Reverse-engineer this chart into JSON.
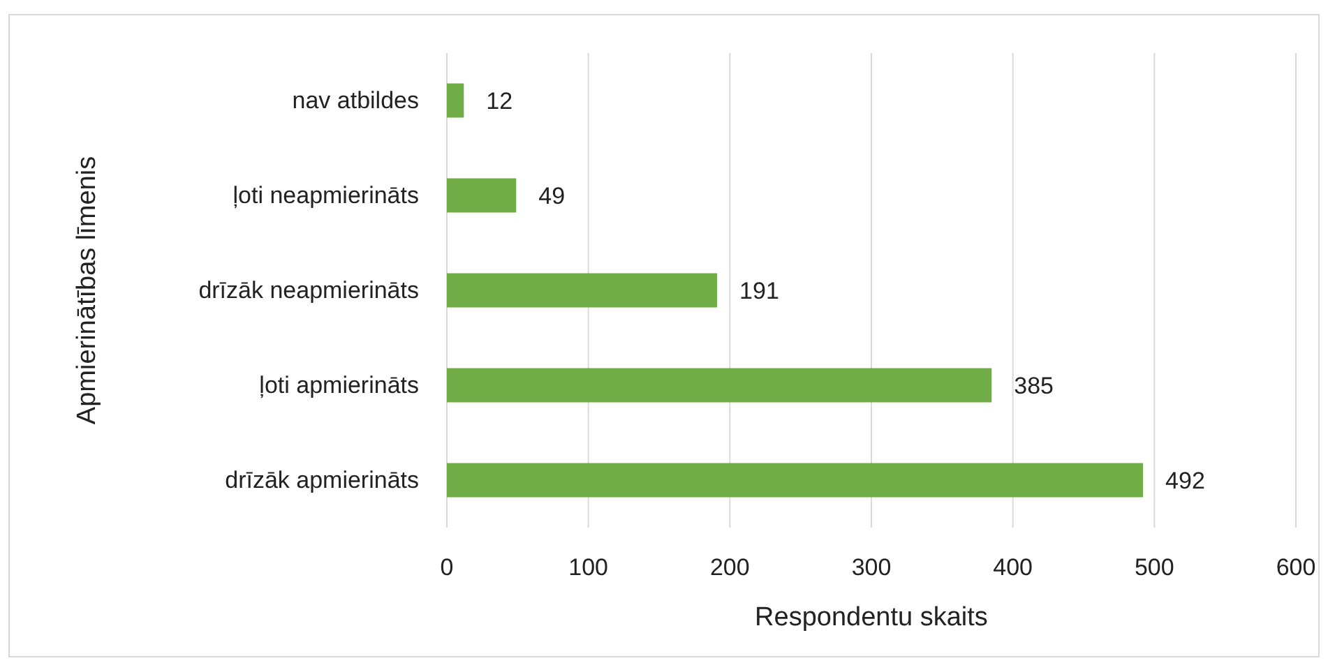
{
  "chart_data": {
    "type": "bar",
    "orientation": "horizontal",
    "xlabel": "Respondentu skaits",
    "ylabel": "Apmierinātības līmenis",
    "categories": [
      "nav atbildes",
      "ļoti neapmierināts",
      "drīzāk neapmierināts",
      "ļoti apmierināts",
      "drīzāk apmierināts"
    ],
    "values": [
      12,
      49,
      191,
      385,
      492
    ],
    "color": "#70ad47",
    "xlim": [
      0,
      600
    ],
    "xticks": [
      0,
      100,
      200,
      300,
      400,
      500,
      600
    ],
    "grid": "x",
    "data_labels": true
  }
}
